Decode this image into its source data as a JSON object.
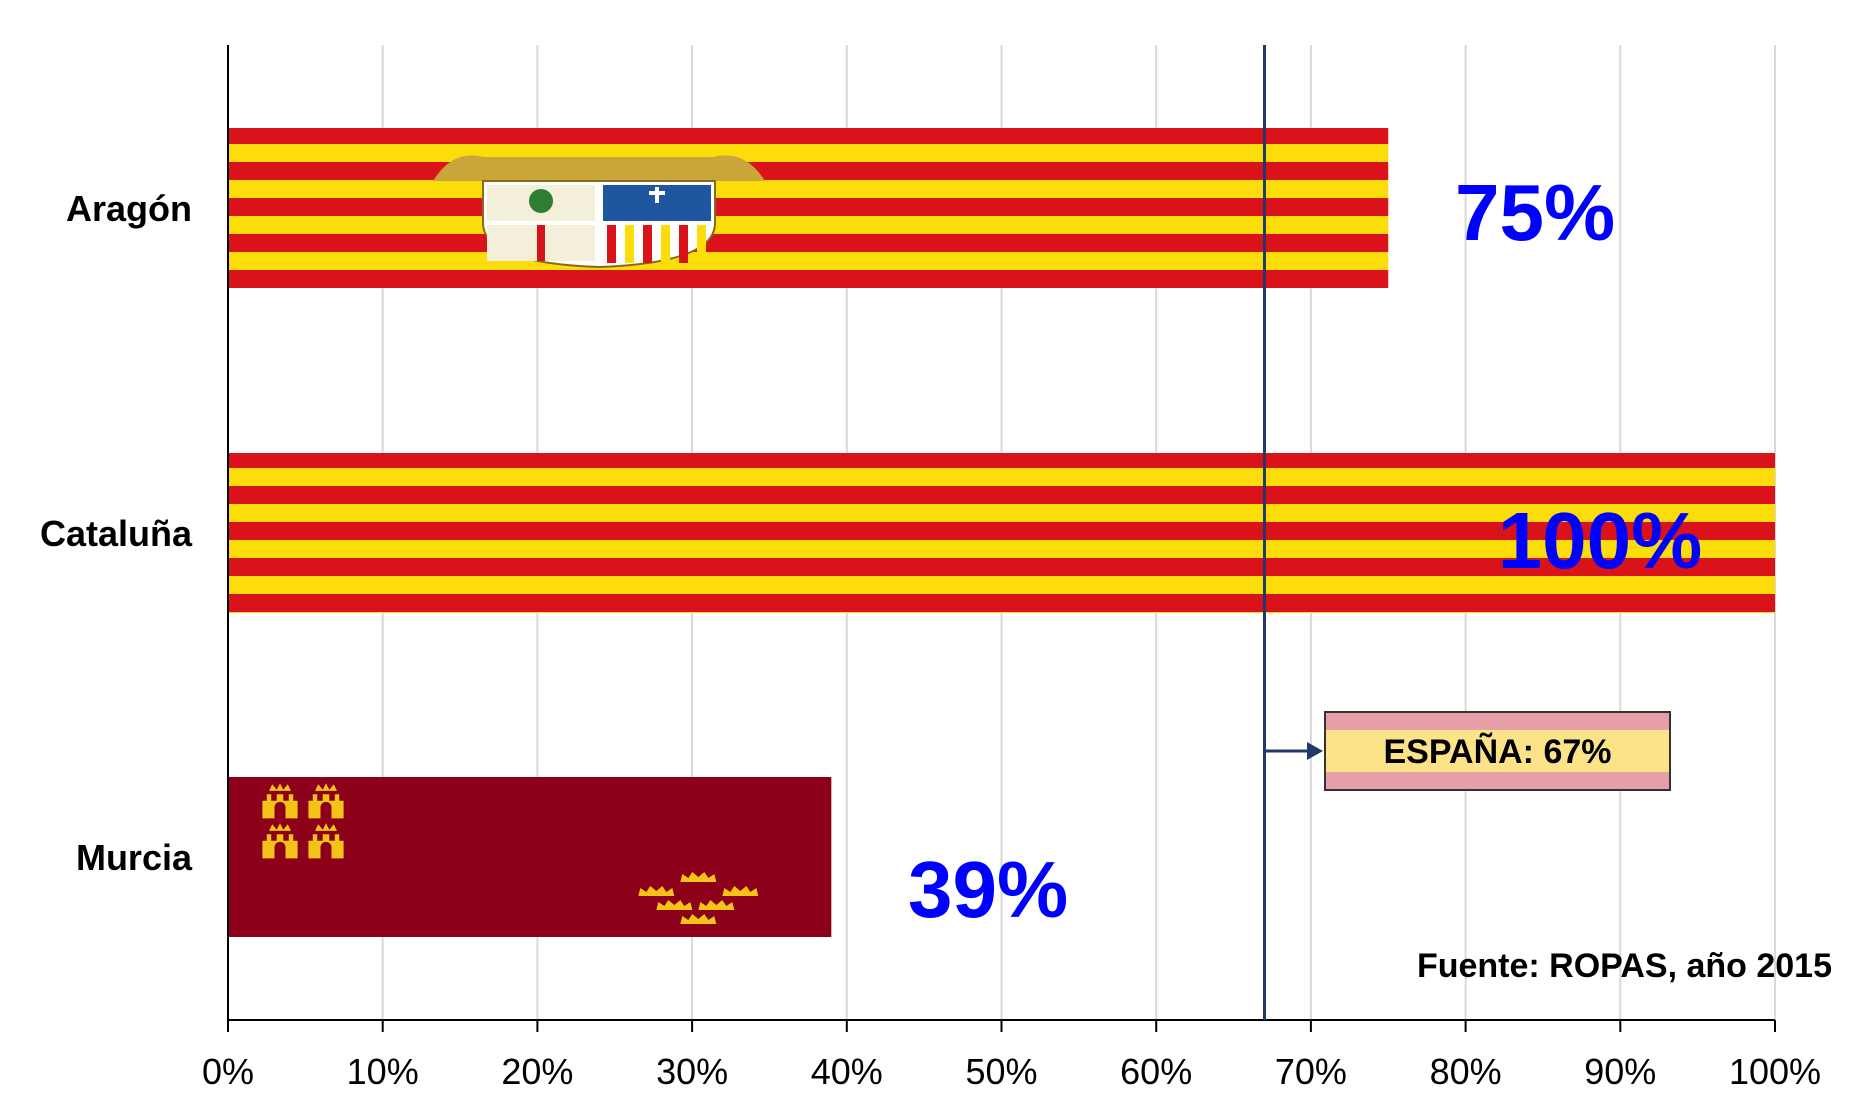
{
  "chart_data": {
    "type": "bar",
    "orientation": "horizontal",
    "categories": [
      "Aragón",
      "Cataluña",
      "Murcia"
    ],
    "values": [
      75,
      100,
      39
    ],
    "value_labels": [
      "75%",
      "100%",
      "39%"
    ],
    "xlim": [
      0,
      100
    ],
    "x_ticks": [
      0,
      10,
      20,
      30,
      40,
      50,
      60,
      70,
      80,
      90,
      100
    ],
    "x_tick_labels": [
      "0%",
      "10%",
      "20%",
      "30%",
      "40%",
      "50%",
      "60%",
      "70%",
      "80%",
      "90%",
      "100%"
    ],
    "grid": "vertical",
    "reference_line": {
      "value": 67,
      "label": "ESPAÑA: 67%"
    },
    "source": "Fuente: ROPAS, año 2015",
    "bar_styles": [
      "aragon-flag",
      "catalonia-flag",
      "murcia-flag"
    ],
    "colors": {
      "flag_yellow": "#FCDD09",
      "flag_red": "#DA121A",
      "murcia_crimson": "#8C0019",
      "value_label": "#0000FF",
      "reference_line": "#1F3A68",
      "grid": "#D9D9D9",
      "ref_box_fill": "#FCE38A",
      "ref_box_stripe": "#E8A0A8"
    }
  }
}
